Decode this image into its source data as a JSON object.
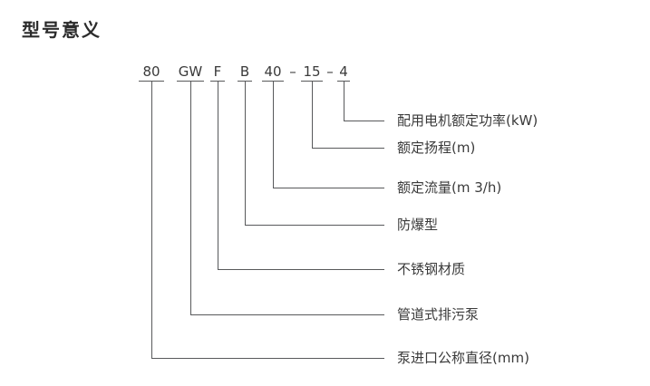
{
  "title": "型号意义",
  "model_code": {
    "segments": [
      "80",
      "GW",
      "F",
      "B",
      "40",
      "15",
      "4"
    ],
    "separator": "–"
  },
  "callouts": [
    {
      "code": "4",
      "label": "配用电机额定功率(kW)"
    },
    {
      "code": "15",
      "label": "额定扬程(m)"
    },
    {
      "code": "40",
      "label": "额定流量(m 3/h)"
    },
    {
      "code": "B",
      "label": "防爆型"
    },
    {
      "code": "F",
      "label": "不锈钢材质"
    },
    {
      "code": "GW",
      "label": "管道式排污泵"
    },
    {
      "code": "80",
      "label": "泵进口公称直径(mm)"
    }
  ],
  "colors": {
    "background": "#ffffff",
    "line": "#58595b",
    "text": "#3a3a3a"
  }
}
